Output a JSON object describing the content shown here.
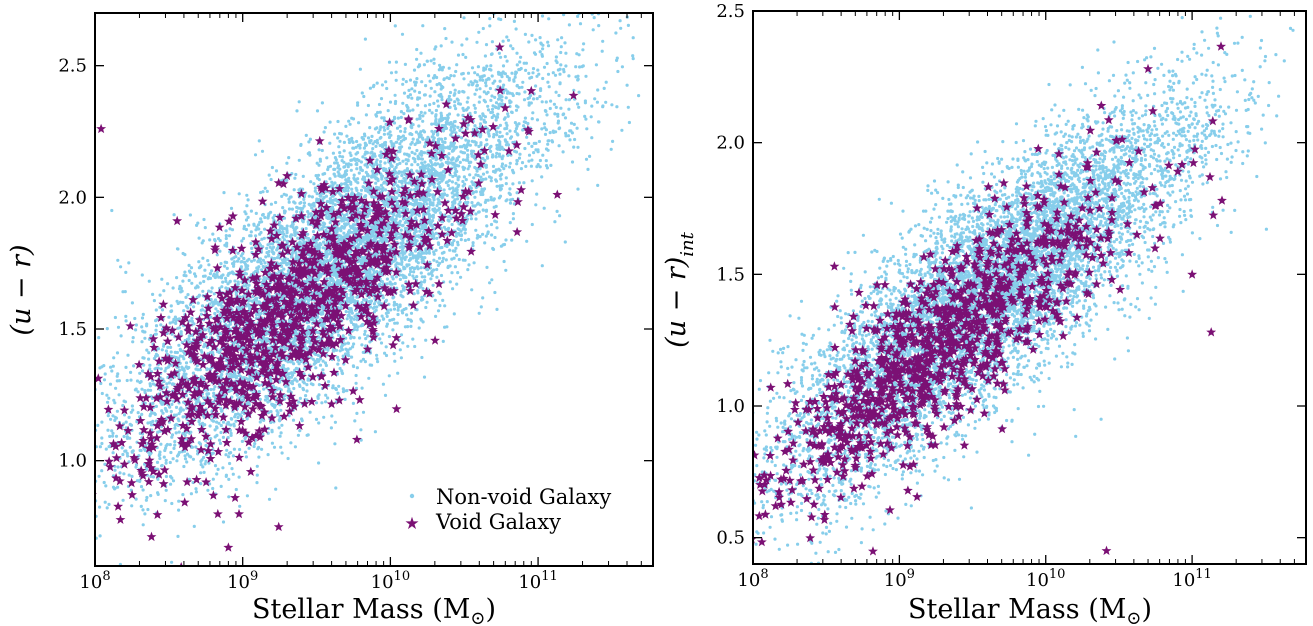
{
  "chart_data": [
    {
      "type": "scatter",
      "title": "",
      "xlabel": "Stellar Mass (M",
      "xlabel_sub": "⊙",
      "xlabel_close": ")",
      "ylabel": "(u − r)",
      "ylabel_sub": "",
      "xscale": "log",
      "xlim": [
        100000000.0,
        600000000000.0
      ],
      "ylim": [
        0.6,
        2.7
      ],
      "xticks": [
        {
          "value": 100000000.0,
          "base": "10",
          "exp": "8"
        },
        {
          "value": 1000000000.0,
          "base": "10",
          "exp": "9"
        },
        {
          "value": 10000000000.0,
          "base": "10",
          "exp": "10"
        },
        {
          "value": 100000000000.0,
          "base": "10",
          "exp": "11"
        }
      ],
      "yticks": [
        {
          "value": 1.0,
          "label": "1.0"
        },
        {
          "value": 1.5,
          "label": "1.5"
        },
        {
          "value": 2.0,
          "label": "2.0"
        },
        {
          "value": 2.5,
          "label": "2.5"
        }
      ],
      "grid": false,
      "legend_position": "bottom-right",
      "series": [
        {
          "name": "Non-void Galaxy",
          "marker": "dot",
          "color": "#87ceeb",
          "n_points": 8000,
          "trend": {
            "y_at_1e8": 1.05,
            "slope_per_dex": 0.43,
            "scatter": 0.22,
            "logm_mean": 9.6,
            "logm_sd": 0.72
          },
          "outliers": [
            [
              130000000.0,
              1.95
            ],
            [
              340000000000.0,
              2.52
            ],
            [
              6000000000.0,
              2.35
            ]
          ]
        },
        {
          "name": "Void Galaxy",
          "marker": "star",
          "color": "#7b1074",
          "n_points": 1000,
          "trend": {
            "y_at_1e8": 1.0,
            "slope_per_dex": 0.42,
            "scatter": 0.19,
            "logm_mean": 9.3,
            "logm_sd": 0.62
          },
          "outliers": [
            [
              110000000.0,
              2.26
            ],
            [
              360000000.0,
              1.91
            ],
            [
              55000000000.0,
              2.57
            ],
            [
              135000000000.0,
              2.01
            ],
            [
              800000000.0,
              0.67
            ]
          ]
        }
      ]
    },
    {
      "type": "scatter",
      "title": "",
      "xlabel": "Stellar Mass (M",
      "xlabel_sub": "⊙",
      "xlabel_close": ")",
      "ylabel": "(u − r)",
      "ylabel_sub": "int",
      "xscale": "log",
      "xlim": [
        100000000.0,
        600000000000.0
      ],
      "ylim": [
        0.4,
        2.5
      ],
      "xticks": [
        {
          "value": 100000000.0,
          "base": "10",
          "exp": "8"
        },
        {
          "value": 1000000000.0,
          "base": "10",
          "exp": "9"
        },
        {
          "value": 10000000000.0,
          "base": "10",
          "exp": "10"
        },
        {
          "value": 100000000000.0,
          "base": "10",
          "exp": "11"
        }
      ],
      "yticks": [
        {
          "value": 0.5,
          "label": "0.5"
        },
        {
          "value": 1.0,
          "label": "1.0"
        },
        {
          "value": 1.5,
          "label": "1.5"
        },
        {
          "value": 2.0,
          "label": "2.0"
        },
        {
          "value": 2.5,
          "label": "2.5"
        }
      ],
      "grid": false,
      "legend_position": "none",
      "series": [
        {
          "name": "Non-void Galaxy",
          "marker": "dot",
          "color": "#87ceeb",
          "n_points": 8000,
          "trend": {
            "y_at_1e8": 0.75,
            "slope_per_dex": 0.42,
            "scatter": 0.2,
            "logm_mean": 9.6,
            "logm_sd": 0.72
          },
          "outliers": [
            [
              250000000000.0,
              2.48
            ],
            [
              220000000000.0,
              2.4
            ]
          ]
        },
        {
          "name": "Void Galaxy",
          "marker": "star",
          "color": "#7b1074",
          "n_points": 1000,
          "trend": {
            "y_at_1e8": 0.72,
            "slope_per_dex": 0.4,
            "scatter": 0.16,
            "logm_mean": 9.3,
            "logm_sd": 0.62
          },
          "outliers": [
            [
              360000000.0,
              1.53
            ],
            [
              26000000000.0,
              0.45
            ],
            [
              50000000000.0,
              2.28
            ],
            [
              135000000000.0,
              1.28
            ],
            [
              160000000000.0,
              1.78
            ]
          ]
        }
      ]
    }
  ]
}
